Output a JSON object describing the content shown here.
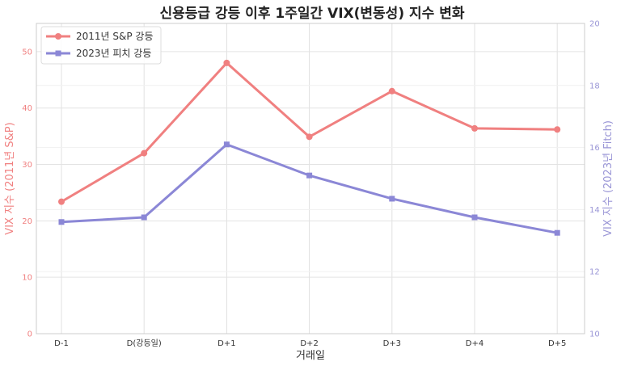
{
  "chart_data": {
    "type": "line",
    "title": "신용등급 강등 이후 1주일간 VIX(변동성) 지수 변화",
    "xlabel": "거래일",
    "categories": [
      "D-1",
      "D(강등일)",
      "D+1",
      "D+2",
      "D+3",
      "D+4",
      "D+5"
    ],
    "y_left": {
      "label": "VIX 지수 (2011년 S&P)",
      "lim": [
        0,
        55
      ],
      "ticks": [
        0,
        10,
        20,
        30,
        40,
        50
      ],
      "color": "#f08080"
    },
    "y_right": {
      "label": "VIX 지수 (2023년 Fitch)",
      "lim": [
        10,
        20
      ],
      "ticks": [
        10,
        12,
        14,
        16,
        18,
        20
      ],
      "color": "#9a96d6"
    },
    "series": [
      {
        "name": "2011년 S&P 강등",
        "axis": "left",
        "marker": "circle",
        "color": "#f08080",
        "values": [
          23.4,
          32.0,
          48.0,
          34.9,
          43.0,
          36.4,
          36.2
        ]
      },
      {
        "name": "2023년 피치 강등",
        "axis": "right",
        "marker": "square",
        "color": "#8b87d6",
        "values": [
          13.6,
          13.75,
          16.1,
          15.1,
          14.35,
          13.75,
          13.25
        ]
      }
    ],
    "grid": true,
    "legend": "top-left"
  }
}
